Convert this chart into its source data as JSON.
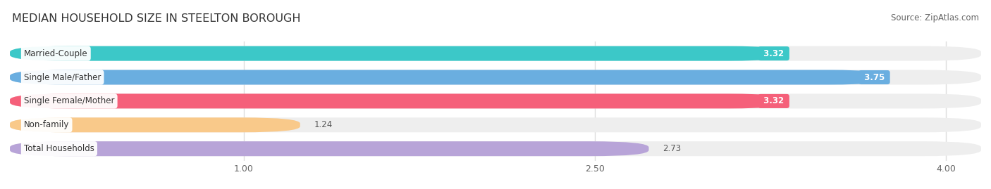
{
  "title": "MEDIAN HOUSEHOLD SIZE IN STEELTON BOROUGH",
  "source": "Source: ZipAtlas.com",
  "categories": [
    "Married-Couple",
    "Single Male/Father",
    "Single Female/Mother",
    "Non-family",
    "Total Households"
  ],
  "values": [
    3.32,
    3.75,
    3.32,
    1.24,
    2.73
  ],
  "bar_colors": [
    "#3cc8c8",
    "#6aaee0",
    "#f5607a",
    "#f9c98a",
    "#b8a4d8"
  ],
  "value_label_colors": [
    "white",
    "white",
    "white",
    "black",
    "black"
  ],
  "xlim_min": 0.0,
  "xlim_max": 4.15,
  "xticks": [
    1.0,
    2.5,
    4.0
  ],
  "xtick_labels": [
    "1.00",
    "2.50",
    "4.00"
  ],
  "title_fontsize": 11.5,
  "source_fontsize": 8.5,
  "bar_label_fontsize": 8.5,
  "category_fontsize": 8.5,
  "chart_bg": "#ffffff",
  "outer_bg": "#ffffff",
  "bar_track_color": "#eeeeee",
  "grid_color": "#dddddd"
}
